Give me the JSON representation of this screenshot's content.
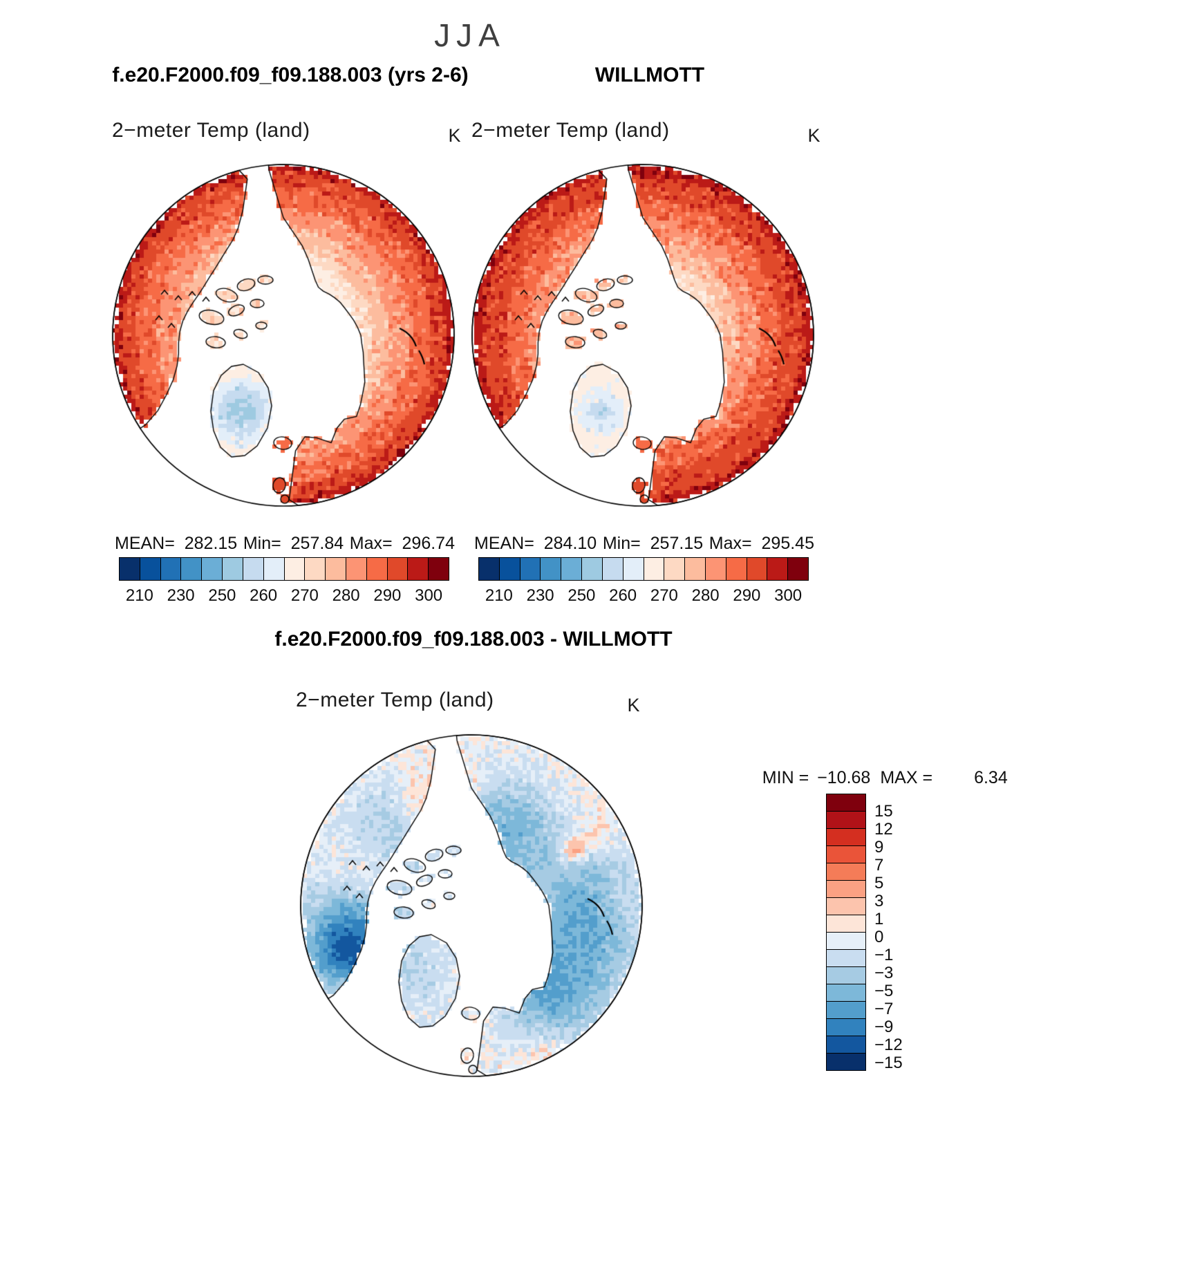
{
  "title": "JJA",
  "panels": {
    "left": {
      "header": "f.e20.F2000.f09_f09.188.003 (yrs 2-6)",
      "map_title": "2−meter Temp (land)",
      "unit": "K",
      "mean_label": "MEAN=",
      "mean": "282.15",
      "min_label": "Min=",
      "min": "257.84",
      "max_label": "Max=",
      "max": "296.74"
    },
    "right": {
      "header": "WILLMOTT",
      "map_title": "2−meter Temp (land)",
      "unit": "K",
      "mean_label": "MEAN=",
      "mean": "284.10",
      "min_label": "Min=",
      "min": "257.15",
      "max_label": "Max=",
      "max": "295.45"
    },
    "diff": {
      "header": "f.e20.F2000.f09_f09.188.003 - WILLMOTT",
      "map_title": "2−meter Temp (land)",
      "unit": "K",
      "min_label": "MIN =",
      "min": "−10.68",
      "max_label": "MAX =",
      "max": "6.34"
    }
  },
  "chart_data": [
    {
      "type": "heatmap",
      "projection": "north-polar-stereographic",
      "season": "JJA",
      "dataset": "f.e20.F2000.f09_f09.188.003 (yrs 2-6)",
      "variable": "2−meter Temp (land)",
      "units": "K",
      "stats": {
        "mean": 282.15,
        "min": 257.84,
        "max": 296.74
      },
      "colorbar": {
        "orientation": "horizontal",
        "tick_labels": [
          "210",
          "230",
          "250",
          "260",
          "270",
          "280",
          "290",
          "300"
        ],
        "colors": [
          "#08306b",
          "#08519c",
          "#2171b5",
          "#4292c6",
          "#6baed6",
          "#9ecae1",
          "#c6dbef",
          "#e3eef9",
          "#fdeee3",
          "#fdd9c3",
          "#fcbc9e",
          "#fc9474",
          "#f66b46",
          "#e0492a",
          "#bb1a17",
          "#7f000d"
        ]
      }
    },
    {
      "type": "heatmap",
      "projection": "north-polar-stereographic",
      "season": "JJA",
      "dataset": "WILLMOTT",
      "variable": "2−meter Temp (land)",
      "units": "K",
      "stats": {
        "mean": 284.1,
        "min": 257.15,
        "max": 295.45
      },
      "colorbar": {
        "orientation": "horizontal",
        "tick_labels": [
          "210",
          "230",
          "250",
          "260",
          "270",
          "280",
          "290",
          "300"
        ],
        "colors": [
          "#08306b",
          "#08519c",
          "#2171b5",
          "#4292c6",
          "#6baed6",
          "#9ecae1",
          "#c6dbef",
          "#e3eef9",
          "#fdeee3",
          "#fdd9c3",
          "#fcbc9e",
          "#fc9474",
          "#f66b46",
          "#e0492a",
          "#bb1a17",
          "#7f000d"
        ]
      }
    },
    {
      "type": "heatmap",
      "projection": "north-polar-stereographic",
      "season": "JJA",
      "dataset": "f.e20.F2000.f09_f09.188.003 - WILLMOTT",
      "variable": "2−meter Temp (land)",
      "units": "K",
      "stats": {
        "min": -10.68,
        "max": 6.34
      },
      "colorbar": {
        "orientation": "vertical",
        "tick_labels": [
          "15",
          "12",
          "9",
          "7",
          "5",
          "3",
          "1",
          "0",
          "−1",
          "−3",
          "−5",
          "−7",
          "−9",
          "−12",
          "−15"
        ],
        "colors": [
          "#7f000d",
          "#b11218",
          "#d42f20",
          "#ea5439",
          "#f47c58",
          "#fba183",
          "#fcc4ad",
          "#fde5d8",
          "#e6eff8",
          "#c9ddf0",
          "#a6cbe3",
          "#7db8d9",
          "#539ecc",
          "#3182be",
          "#13579f",
          "#08306b"
        ]
      }
    }
  ]
}
